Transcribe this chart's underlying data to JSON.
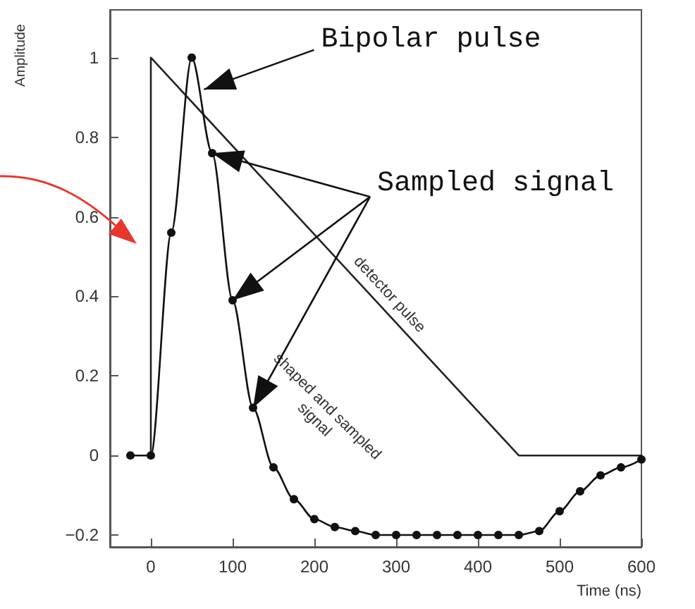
{
  "chart_data": {
    "type": "line",
    "xlabel": "Time (ns)",
    "ylabel": "Amplitude",
    "xlim": [
      -50,
      600
    ],
    "xticks": [
      0,
      100,
      200,
      300,
      400,
      500,
      600
    ],
    "ylim": [
      -0.23,
      1.12
    ],
    "yticks": [
      -0.2,
      0,
      0.2,
      0.4,
      0.6,
      0.8,
      1
    ],
    "grid": false,
    "legend": false,
    "series": [
      {
        "name": "detector pulse",
        "color": "#222222",
        "marker": "none",
        "x": [
          0,
          0,
          450,
          600
        ],
        "values": [
          0,
          1,
          0,
          0
        ]
      },
      {
        "name": "shaped and sampled signal",
        "color": "#111111",
        "marker": "circle",
        "x": [
          -25,
          0,
          25,
          50,
          75,
          100,
          125,
          150,
          175,
          200,
          225,
          250,
          275,
          300,
          325,
          350,
          375,
          400,
          425,
          450,
          475,
          500,
          525,
          550,
          575,
          600
        ],
        "values": [
          0,
          0,
          0.56,
          1.0,
          0.76,
          0.39,
          0.12,
          -0.03,
          -0.11,
          -0.16,
          -0.18,
          -0.19,
          -0.2,
          -0.2,
          -0.2,
          -0.2,
          -0.2,
          -0.2,
          -0.2,
          -0.2,
          -0.19,
          -0.14,
          -0.09,
          -0.05,
          -0.03,
          -0.01
        ]
      }
    ],
    "annotations": [
      {
        "text": "Bipolar pulse",
        "x": 65,
        "y": 0.92
      },
      {
        "text": "Sampled signal",
        "x": 75,
        "y": 0.76
      }
    ]
  }
}
